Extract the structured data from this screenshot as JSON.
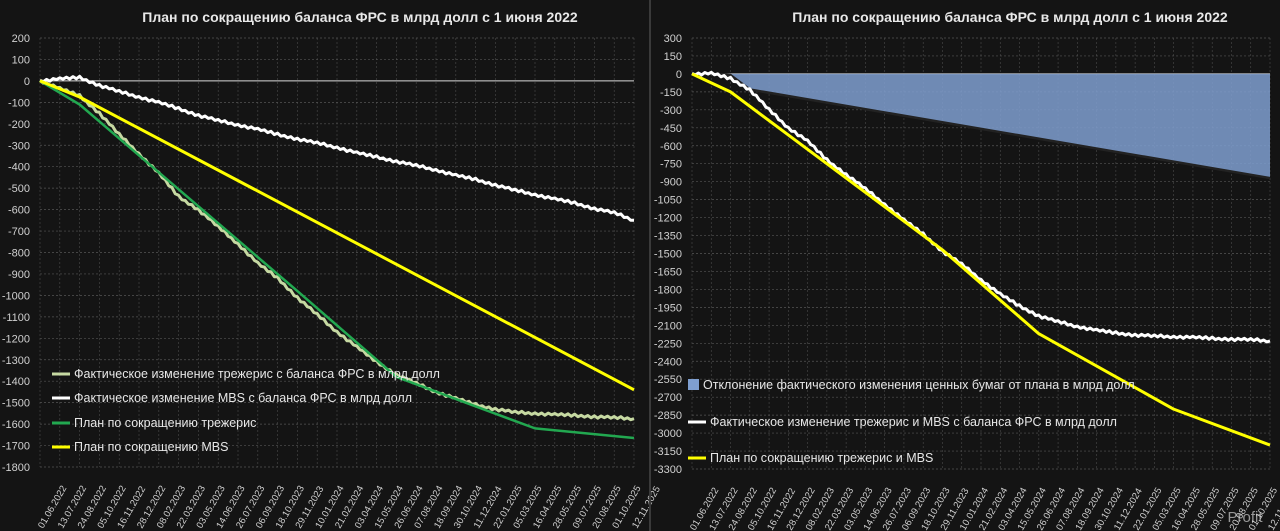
{
  "chart_data": [
    {
      "type": "line",
      "title": "План по сокращению баланса ФРС в млрд долл с 1 июня 2022",
      "ylim": [
        -1800,
        200
      ],
      "ystep": 100,
      "x_labels": [
        "01.06.2022",
        "13.07.2022",
        "24.08.2022",
        "05.10.2022",
        "16.11.2022",
        "28.12.2022",
        "08.02.2023",
        "22.03.2023",
        "03.05.2023",
        "14.06.2023",
        "26.07.2023",
        "06.09.2023",
        "18.10.2023",
        "29.11.2023",
        "10.01.2024",
        "21.02.2024",
        "03.04.2024",
        "15.05.2024",
        "26.06.2024",
        "07.08.2024",
        "18.09.2024",
        "30.10.2024",
        "11.12.2024",
        "22.01.2025",
        "05.03.2025",
        "16.04.2025",
        "28.05.2025",
        "09.07.2025",
        "20.08.2025",
        "01.10.2025",
        "12.11.2025"
      ],
      "series": [
        {
          "name": "Фактическое изменение трежерис с баланса ФРС в млрд долл",
          "color": "#c6d9a2",
          "width": 3,
          "points": [
            [
              0,
              0
            ],
            [
              1,
              -35
            ],
            [
              2,
              -70
            ],
            [
              3,
              -150
            ],
            [
              4,
              -250
            ],
            [
              5,
              -340
            ],
            [
              6,
              -430
            ],
            [
              7,
              -540
            ],
            [
              8,
              -600
            ],
            [
              9,
              -680
            ],
            [
              10,
              -760
            ],
            [
              11,
              -850
            ],
            [
              12,
              -920
            ],
            [
              13,
              -1010
            ],
            [
              14,
              -1090
            ],
            [
              15,
              -1170
            ],
            [
              16,
              -1240
            ],
            [
              17,
              -1310
            ],
            [
              18,
              -1370
            ],
            [
              19,
              -1410
            ],
            [
              20,
              -1450
            ],
            [
              21,
              -1480
            ],
            [
              22,
              -1510
            ],
            [
              23,
              -1530
            ],
            [
              24,
              -1545
            ],
            [
              25,
              -1550
            ],
            [
              26,
              -1555
            ],
            [
              27,
              -1560
            ],
            [
              28,
              -1565
            ],
            [
              29,
              -1570
            ],
            [
              30,
              -1575
            ]
          ]
        },
        {
          "name": "Фактическое изменение MBS с баланса ФРС в млрд долл",
          "color": "#ffffff",
          "width": 3,
          "points": [
            [
              0,
              0
            ],
            [
              1,
              10
            ],
            [
              2,
              15
            ],
            [
              3,
              -20
            ],
            [
              4,
              -50
            ],
            [
              5,
              -75
            ],
            [
              6,
              -100
            ],
            [
              7,
              -130
            ],
            [
              8,
              -160
            ],
            [
              9,
              -185
            ],
            [
              10,
              -205
            ],
            [
              11,
              -225
            ],
            [
              12,
              -250
            ],
            [
              13,
              -270
            ],
            [
              14,
              -290
            ],
            [
              15,
              -310
            ],
            [
              16,
              -335
            ],
            [
              17,
              -355
            ],
            [
              18,
              -375
            ],
            [
              19,
              -395
            ],
            [
              20,
              -415
            ],
            [
              21,
              -440
            ],
            [
              22,
              -460
            ],
            [
              23,
              -485
            ],
            [
              24,
              -510
            ],
            [
              25,
              -530
            ],
            [
              26,
              -550
            ],
            [
              27,
              -570
            ],
            [
              28,
              -595
            ],
            [
              29,
              -615
            ],
            [
              30,
              -650
            ]
          ]
        },
        {
          "name": "План по сокращению трежерис",
          "color": "#22a850",
          "width": 2.5,
          "points": [
            [
              0,
              0
            ],
            [
              2,
              -110
            ],
            [
              13,
              -980
            ],
            [
              18,
              -1380
            ],
            [
              25,
              -1620
            ],
            [
              30,
              -1665
            ]
          ]
        },
        {
          "name": "План по сокращению MBS",
          "color": "#ffff00",
          "width": 3,
          "points": [
            [
              0,
              0
            ],
            [
              2,
              -75
            ],
            [
              30,
              -1440
            ]
          ]
        }
      ]
    },
    {
      "type": "line+area",
      "title": "План по сокращению баланса ФРС в млрд долл с 1 июня 2022",
      "ylim": [
        -3300,
        300
      ],
      "ystep": 150,
      "x_labels": [
        "01.06.2022",
        "13.07.2022",
        "24.08.2022",
        "05.10.2022",
        "16.11.2022",
        "28.12.2022",
        "08.02.2023",
        "22.03.2023",
        "03.05.2023",
        "14.06.2023",
        "26.07.2023",
        "06.09.2023",
        "18.10.2023",
        "29.11.2023",
        "10.01.2024",
        "21.02.2024",
        "03.04.2024",
        "15.05.2024",
        "26.06.2024",
        "07.08.2024",
        "18.09.2024",
        "30.10.2024",
        "11.12.2024",
        "22.01.2025",
        "05.03.2025",
        "16.04.2025",
        "28.05.2025",
        "09.07.2025",
        "20.08.2025",
        "01.10.2025",
        "12.11.2025"
      ],
      "area": {
        "name": "Отклонение фактического изменения ценных бумаг от плана в млрд долл",
        "color": "#7f9fd0",
        "points": [
          [
            0,
            0
          ],
          [
            1,
            5
          ],
          [
            2,
            -10
          ],
          [
            3,
            -130
          ],
          [
            30,
            -870
          ]
        ]
      },
      "series": [
        {
          "name": "Фактическое изменение трежерис и MBS с баланса ФРС в млрд долл",
          "color": "#ffffff",
          "width": 3,
          "points": [
            [
              0,
              0
            ],
            [
              1,
              5
            ],
            [
              2,
              -40
            ],
            [
              3,
              -130
            ],
            [
              4,
              -300
            ],
            [
              5,
              -450
            ],
            [
              6,
              -560
            ],
            [
              7,
              -720
            ],
            [
              8,
              -840
            ],
            [
              9,
              -960
            ],
            [
              10,
              -1090
            ],
            [
              11,
              -1220
            ],
            [
              12,
              -1340
            ],
            [
              13,
              -1480
            ],
            [
              14,
              -1590
            ],
            [
              15,
              -1720
            ],
            [
              16,
              -1840
            ],
            [
              17,
              -1940
            ],
            [
              18,
              -2020
            ],
            [
              19,
              -2070
            ],
            [
              20,
              -2110
            ],
            [
              21,
              -2140
            ],
            [
              22,
              -2165
            ],
            [
              23,
              -2180
            ],
            [
              24,
              -2190
            ],
            [
              25,
              -2195
            ],
            [
              26,
              -2200
            ],
            [
              27,
              -2210
            ],
            [
              28,
              -2215
            ],
            [
              29,
              -2220
            ],
            [
              30,
              -2230
            ]
          ]
        },
        {
          "name": "План по сокращению трежерис и MBS",
          "color": "#ffff00",
          "width": 3,
          "points": [
            [
              0,
              0
            ],
            [
              2,
              -150
            ],
            [
              13,
              -1470
            ],
            [
              18,
              -2170
            ],
            [
              25,
              -2800
            ],
            [
              30,
              -3100
            ]
          ]
        }
      ]
    }
  ],
  "watermark": "Profit"
}
